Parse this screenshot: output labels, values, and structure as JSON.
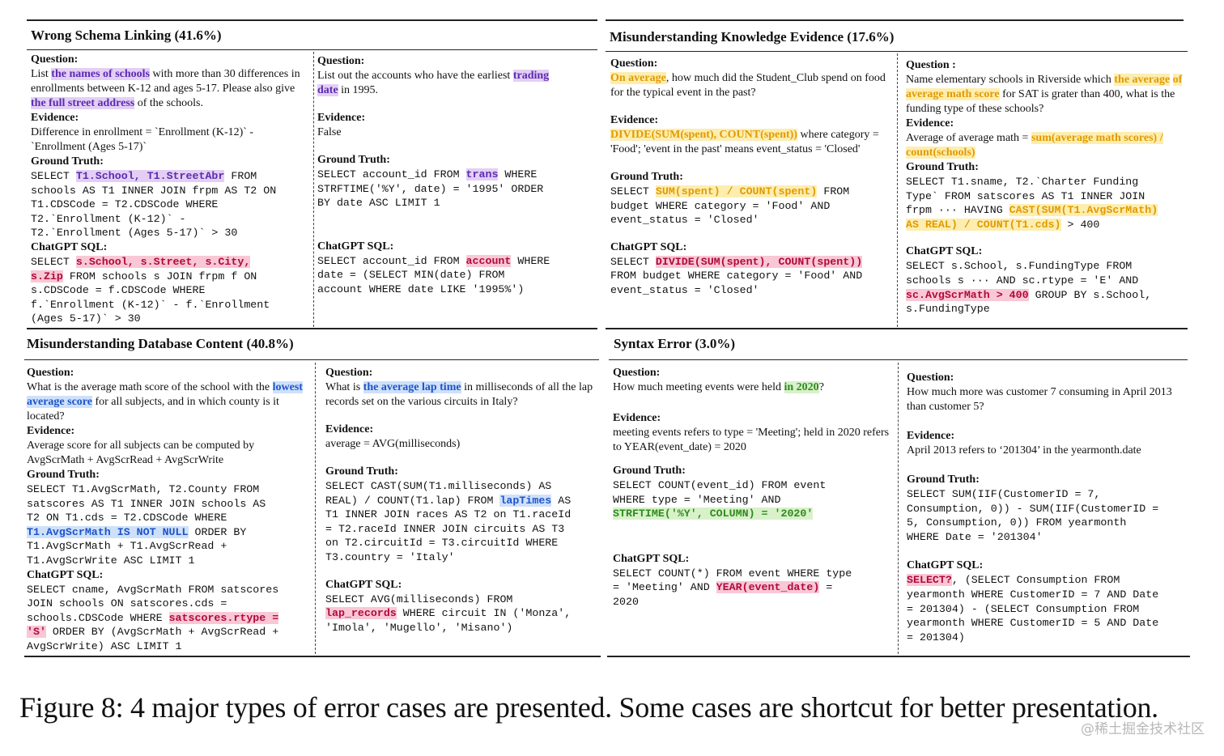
{
  "sections": {
    "schema": {
      "title": "Wrong Schema Linking (41.6%)"
    },
    "knowledge": {
      "title": "Misunderstanding Knowledge Evidence (17.6%)"
    },
    "db": {
      "title": "Misunderstanding Database Content (40.8%)"
    },
    "syntax": {
      "title": "Syntax Error (3.0%)"
    }
  },
  "labels": {
    "question": "Question:",
    "question_alt": "Question :",
    "evidence": "Evidence:",
    "ground_truth": "Ground Truth:",
    "chatgpt_sql": "ChatGPT SQL:"
  },
  "c1": {
    "q": [
      "List ",
      "the names of schools",
      " with more than 30 differences in enrollments between K-12 and ages 5-17. Please also give ",
      "the full street address",
      " of the schools."
    ],
    "ev": "Difference in enrollment = `Enrollment (K-12)` - `Enrollment (Ages 5-17)`",
    "gt": [
      "SELECT ",
      "T1.School, T1.StreetAbr",
      " FROM\nschools AS T1 INNER JOIN frpm AS T2 ON\nT1.CDSCode = T2.CDSCode WHERE\nT2.`Enrollment (K-12)` -\nT2.`Enrollment (Ages 5-17)` > 30"
    ],
    "sql": [
      "SELECT ",
      "s.School, s.Street, s.City,",
      "\n",
      "s.Zip",
      " FROM schools s JOIN frpm f ON\ns.CDSCode = f.CDSCode WHERE\nf.`Enrollment (K-12)` - f.`Enrollment\n(Ages 5-17)` > 30"
    ]
  },
  "c2": {
    "q": [
      "List out the accounts who have the earliest ",
      "trading",
      "\n",
      "date",
      " in 1995."
    ],
    "ev": "False",
    "gt": [
      "SELECT account_id FROM ",
      "trans",
      " WHERE\nSTRFTIME('%Y', date) = '1995' ORDER\nBY date ASC LIMIT 1"
    ],
    "sql": [
      "SELECT account_id FROM ",
      "account",
      " WHERE\ndate = (SELECT MIN(date) FROM\naccount WHERE date LIKE '1995%')"
    ]
  },
  "c3": {
    "q": [
      "",
      "On average",
      ", how much did the Student_Club spend on food for the typical event in the past?"
    ],
    "ev": [
      "",
      "DIVIDE(SUM(spent), COUNT(spent))",
      " where category = 'Food'; 'event in the past' means event_status = 'Closed'"
    ],
    "gt": [
      "SELECT ",
      "SUM(spent) / COUNT(spent)",
      " FROM\nbudget WHERE category = 'Food' AND\nevent_status = 'Closed'"
    ],
    "sql": [
      "SELECT ",
      "DIVIDE(SUM(spent), COUNT(spent))",
      "\nFROM budget WHERE category = 'Food' AND\nevent_status = 'Closed'"
    ]
  },
  "c4": {
    "q": [
      "Name elementary schools in Riverside which ",
      "the average",
      " ",
      "of average math score",
      " for SAT is grater than 400, what is the funding type of these schools?"
    ],
    "ev": [
      "Average of average math = ",
      "sum(average math scores) /",
      " ",
      "count(schools)",
      ""
    ],
    "gt": [
      "SELECT T1.sname, T2.`Charter Funding\nType` FROM satscores AS T1 INNER JOIN\nfrpm ··· HAVING ",
      "CAST(SUM(T1.AvgScrMath)",
      "\n",
      "AS REAL) / COUNT(T1.cds)",
      " > 400"
    ],
    "sql": [
      "SELECT s.School, s.FundingType FROM\nschools s ··· AND sc.rtype = 'E' AND\n",
      "sc.AvgScrMath > 400",
      " GROUP BY s.School,\ns.FundingType"
    ]
  },
  "c5": {
    "q": [
      "What is the average math score of the school with the ",
      "lowest average score",
      " for all subjects, and in which county is it located?"
    ],
    "ev": "Average score for all subjects can be computed by AvgScrMath + AvgScrRead + AvgScrWrite",
    "gt": [
      "SELECT T1.AvgScrMath, T2.County FROM\nsatscores AS T1 INNER JOIN schools AS\nT2 ON T1.cds = T2.CDSCode WHERE\n",
      "T1.AvgScrMath IS NOT NULL",
      " ORDER BY\nT1.AvgScrMath + T1.AvgScrRead +\nT1.AvgScrWrite ASC LIMIT 1"
    ],
    "sql": [
      "SELECT cname, AvgScrMath FROM satscores\nJOIN schools ON satscores.cds =\nschools.CDSCode WHERE ",
      "satscores.rtype =",
      "\n",
      "'S'",
      " ORDER BY (AvgScrMath + AvgScrRead +\nAvgScrWrite) ASC LIMIT 1"
    ]
  },
  "c6": {
    "q": [
      "What is ",
      "the average lap time",
      " in milliseconds of all the lap records set on the various circuits in Italy?"
    ],
    "ev": "average = AVG(milliseconds)",
    "gt": [
      "SELECT CAST(SUM(T1.milliseconds) AS\nREAL) / COUNT(T1.lap) FROM ",
      "lapTimes",
      " AS\nT1 INNER JOIN races AS T2 on T1.raceId\n= T2.raceId INNER JOIN circuits AS T3\non T2.circuitId = T3.circuitId WHERE\nT3.country = 'Italy'"
    ],
    "sql": [
      "SELECT AVG(milliseconds) FROM\n",
      "lap_records",
      " WHERE circuit IN ('Monza',\n'Imola', 'Mugello', 'Misano')"
    ]
  },
  "c7": {
    "q": [
      "How much meeting events were held ",
      "in 2020",
      "?"
    ],
    "ev": "meeting events refers to type = 'Meeting'; held in 2020 refers to YEAR(event_date) = 2020",
    "gt": [
      "SELECT COUNT(event_id) FROM event\nWHERE type = 'Meeting' AND\n",
      "STRFTIME('%Y', COLUMN) = '2020'",
      ""
    ],
    "sql": [
      "SELECT COUNT(*) FROM event WHERE type\n= 'Meeting' AND ",
      "YEAR(event_date)",
      " =\n2020"
    ]
  },
  "c8": {
    "q": "How much more was customer 7 consuming in April 2013 than customer 5?",
    "ev": "April 2013 refers to ‘201304’ in the yearmonth.date",
    "gt": "SELECT SUM(IIF(CustomerID = 7,\nConsumption, 0)) - SUM(IIF(CustomerID =\n5, Consumption, 0)) FROM yearmonth\nWHERE Date = '201304'",
    "sql": [
      "",
      "SELECT?",
      ", (SELECT Consumption FROM\nyearmonth WHERE CustomerID = 7 AND Date\n= 201304) - (SELECT Consumption FROM\nyearmonth WHERE CustomerID = 5 AND Date\n= 201304)"
    ]
  },
  "caption": "Figure 8: 4 major types of error cases are presented. Some cases are shortcut for better presentation.",
  "watermark": "@稀土掘金技术社区"
}
